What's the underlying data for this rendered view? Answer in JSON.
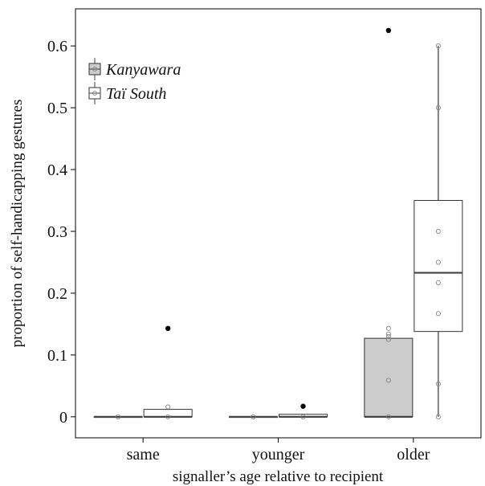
{
  "chart_data": {
    "type": "box",
    "title": "",
    "xlabel": "signaller’s age relative to recipient",
    "ylabel": "proportion of self-handicapping gestures",
    "ylim": [
      -0.034,
      0.66
    ],
    "yticks": [
      0,
      0.1,
      0.2,
      0.3,
      0.4,
      0.5,
      0.6
    ],
    "ytick_labels": [
      "0",
      "0.1",
      "0.2",
      "0.3",
      "0.4",
      "0.5",
      "0.6"
    ],
    "categories": [
      "same",
      "younger",
      "older"
    ],
    "legend": {
      "position": "top-left"
    },
    "series": [
      {
        "name": "Kanyawara",
        "fill": "#cccccc",
        "boxes": [
          {
            "q1": 0,
            "median": 0,
            "q3": 0,
            "whisker_low": 0,
            "whisker_high": 0,
            "outliers": [],
            "points": [
              0
            ]
          },
          {
            "q1": 0,
            "median": 0,
            "q3": 0,
            "whisker_low": 0,
            "whisker_high": 0,
            "outliers": [],
            "points": [
              0
            ]
          },
          {
            "q1": 0,
            "median": 0,
            "q3": 0.127,
            "whisker_low": 0,
            "whisker_high": 0.127,
            "outliers": [
              0.625
            ],
            "points": [
              0,
              0.059,
              0.125,
              0.13,
              0.134,
              0.143
            ]
          }
        ]
      },
      {
        "name": "Taï South",
        "fill": "#ffffff",
        "boxes": [
          {
            "q1": 0,
            "median": 0,
            "q3": 0.012,
            "whisker_low": 0,
            "whisker_high": 0.012,
            "outliers": [
              0.143
            ],
            "points": [
              0,
              0.016
            ]
          },
          {
            "q1": 0,
            "median": 0,
            "q3": 0.004,
            "whisker_low": 0,
            "whisker_high": 0.004,
            "outliers": [
              0.017
            ],
            "points": [
              0
            ]
          },
          {
            "q1": 0.138,
            "median": 0.233,
            "q3": 0.35,
            "whisker_low": 0,
            "whisker_high": 0.6,
            "outliers": [],
            "points": [
              0,
              0.053,
              0.167,
              0.217,
              0.25,
              0.3,
              0.5,
              0.6
            ]
          }
        ]
      }
    ]
  }
}
